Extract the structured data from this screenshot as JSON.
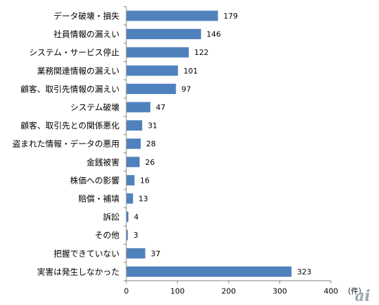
{
  "chart_data": {
    "type": "bar",
    "orientation": "horizontal",
    "categories": [
      "データ破壊・損失",
      "社員情報の漏えい",
      "システム・サービス停止",
      "業務関連情報の漏えい",
      "顧客、取引先情報の漏えい",
      "システム破壊",
      "顧客、取引先との関係悪化",
      "盗まれた情報・データの悪用",
      "金銭被害",
      "株価への影響",
      "賠償・補填",
      "訴訟",
      "その他",
      "把握できていない",
      "実害は発生しなかった"
    ],
    "values": [
      179,
      146,
      122,
      101,
      97,
      47,
      31,
      28,
      26,
      16,
      13,
      4,
      3,
      37,
      323
    ],
    "value_labels": [
      "179",
      "146",
      "122",
      "101",
      "97",
      "47",
      "31",
      "28",
      "26",
      "16",
      "13",
      "4",
      "3",
      "37",
      "323"
    ],
    "xlim": [
      0,
      400
    ],
    "x_ticks": [
      0,
      100,
      200,
      300,
      400
    ],
    "x_tick_labels": [
      "0",
      "100",
      "200",
      "300",
      "400"
    ],
    "x_unit": "（件）",
    "title": "",
    "xlabel": "",
    "ylabel": "",
    "grid": false,
    "legend": "none",
    "bar_color": "#4f81bd"
  },
  "logo": {
    "text": "ai",
    "color": "#9aa6ad"
  }
}
